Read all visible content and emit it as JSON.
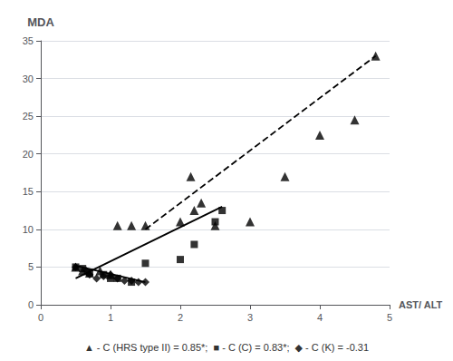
{
  "chart_data": {
    "type": "scatter",
    "xlabel": "AST/ ALT",
    "ylabel": "MDA",
    "annotation": "▲ - C (HRS type II) = 0.85*;  ■ - C (C) = 0.83*;  ◆ - C (K) = -0.31",
    "xlim": [
      0,
      5
    ],
    "ylim": [
      0,
      35
    ],
    "xticks": [
      0,
      1,
      2,
      3,
      4,
      5
    ],
    "yticks": [
      0,
      5,
      10,
      15,
      20,
      25,
      30,
      35
    ],
    "grid": "y",
    "series": [
      {
        "type": "line",
        "line_style": "dashed",
        "color": "#000000",
        "x": [
          1.5,
          4.8
        ],
        "values": [
          10.0,
          33.0
        ]
      },
      {
        "type": "line",
        "line_style": "solid",
        "color": "#000000",
        "x": [
          0.5,
          2.6
        ],
        "values": [
          3.5,
          13.0
        ]
      },
      {
        "type": "line",
        "line_style": "solid",
        "color": "#000000",
        "x": [
          0.5,
          1.5
        ],
        "values": [
          5.2,
          3.0
        ]
      },
      {
        "type": "scatter",
        "marker": "triangle",
        "color": "#000000",
        "x": [
          0.5,
          0.6,
          0.7,
          0.85,
          1.0,
          1.1,
          1.3,
          1.5,
          2.0,
          2.15,
          2.2,
          2.3,
          2.5,
          3.0,
          3.5,
          4.0,
          4.5,
          4.8
        ],
        "values": [
          5.0,
          4.5,
          4.2,
          4.5,
          4.0,
          10.5,
          10.5,
          10.5,
          11.0,
          17.0,
          12.5,
          13.5,
          10.5,
          11.0,
          17.0,
          22.5,
          24.5,
          33.0
        ]
      },
      {
        "type": "scatter",
        "marker": "square",
        "color": "#000000",
        "x": [
          0.5,
          0.6,
          0.7,
          0.9,
          1.0,
          1.1,
          1.3,
          1.5,
          2.0,
          2.2,
          2.5,
          2.6
        ],
        "values": [
          5.0,
          4.8,
          4.3,
          4.0,
          3.5,
          3.5,
          3.0,
          5.5,
          6.0,
          8.0,
          11.0,
          12.5
        ]
      },
      {
        "type": "scatter",
        "marker": "diamond",
        "color": "#000000",
        "x": [
          0.5,
          0.65,
          0.7,
          0.8,
          0.9,
          1.0,
          1.1,
          1.2,
          1.3,
          1.4,
          1.5
        ],
        "values": [
          5.0,
          4.5,
          4.0,
          3.5,
          3.8,
          4.0,
          3.5,
          3.2,
          3.2,
          3.0,
          3.0
        ]
      }
    ]
  }
}
